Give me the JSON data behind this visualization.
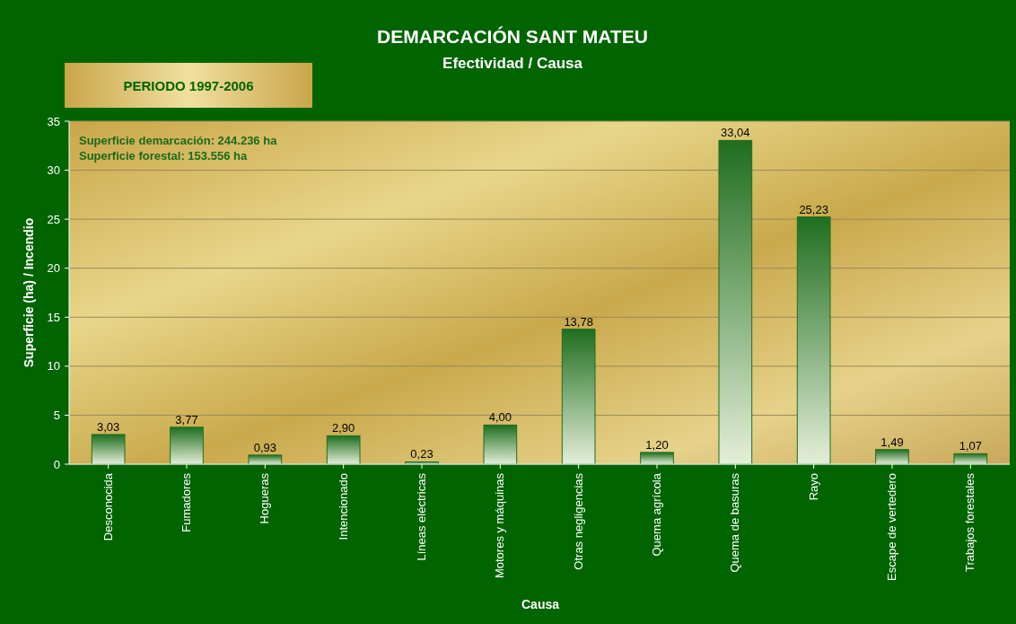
{
  "chart_data": {
    "type": "bar",
    "title": "DEMARCACIÓN SANT MATEU",
    "subtitle": "Efectividad / Causa",
    "xlabel": "Causa",
    "ylabel": "Superficie (ha) / Incendio",
    "categories": [
      "Desconocida",
      "Fumadores",
      "Hogueras",
      "Intencionado",
      "Líneas eléctricas",
      "Motores y máquinas",
      "Otras negligencias",
      "Quema agrícola",
      "Quema de basuras",
      "Rayo",
      "Escape de vertedero",
      "Trabajos forestales"
    ],
    "values": [
      3.03,
      3.77,
      0.93,
      2.9,
      0.23,
      4.0,
      13.78,
      1.2,
      33.04,
      25.23,
      1.49,
      1.07
    ],
    "value_labels": [
      "3,03",
      "3,77",
      "0,93",
      "2,90",
      "0,23",
      "4,00",
      "13,78",
      "1,20",
      "33,04",
      "25,23",
      "1,49",
      "1,07"
    ],
    "color": "#1f6e1f",
    "ylim": [
      0,
      35
    ],
    "yticks": [
      0,
      5,
      10,
      15,
      20,
      25,
      30,
      35
    ],
    "grid": "y",
    "annotations": [
      "PERIODO 1997-2006",
      "Superficie demarcación: 244.236 ha",
      "Superficie forestal: 153.556 ha"
    ]
  }
}
